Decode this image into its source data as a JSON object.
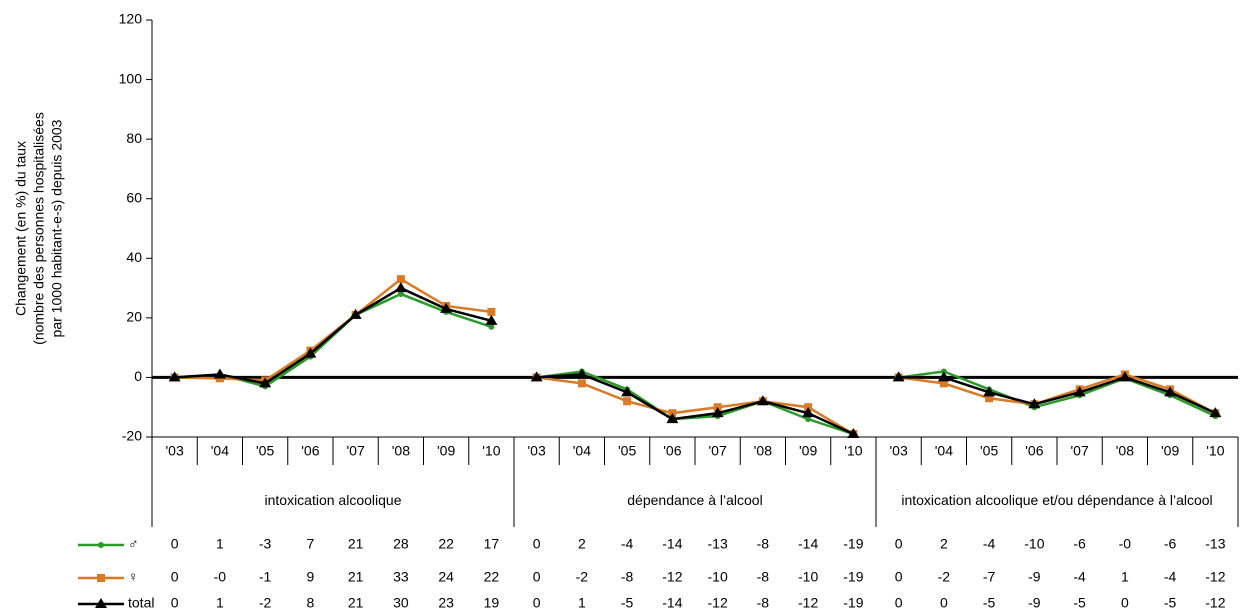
{
  "chart_data": {
    "type": "line",
    "ylabel": [
      "Changement (en %) du taux",
      "(nombre des personnes hospitalisées",
      "par 1000 habitant-e-s) depuis 2003"
    ],
    "groups": [
      {
        "label": "intoxication alcoolique",
        "categories": [
          "'03",
          "'04",
          "'05",
          "'06",
          "'07",
          "'08",
          "'09",
          "'10"
        ]
      },
      {
        "label": "dépendance à l’alcool",
        "categories": [
          "'03",
          "'04",
          "'05",
          "'06",
          "'07",
          "'08",
          "'09",
          "'10"
        ]
      },
      {
        "label": "intoxication alcoolique et/ou dépendance à l’alcool",
        "categories": [
          "'03",
          "'04",
          "'05",
          "'06",
          "'07",
          "'08",
          "'09",
          "'10"
        ]
      }
    ],
    "series": [
      {
        "name": "♂",
        "color": "#2a9a2a",
        "marker": "circle",
        "values": [
          0,
          1,
          -3,
          7,
          21,
          28,
          22,
          17,
          0,
          2,
          -4,
          -14,
          -13,
          -8,
          -14,
          -19,
          0,
          2,
          -4,
          -10,
          -6,
          -0.3,
          -6,
          -13
        ],
        "value_labels": [
          "0",
          "1",
          "-3",
          "7",
          "21",
          "28",
          "22",
          "17",
          "0",
          "2",
          "-4",
          "-14",
          "-13",
          "-8",
          "-14",
          "-19",
          "0",
          "2",
          "-4",
          "-10",
          "-6",
          "-0",
          "-6",
          "-13"
        ]
      },
      {
        "name": "♀",
        "color": "#d97a26",
        "marker": "square",
        "values": [
          0,
          -0.3,
          -1,
          9,
          21,
          33,
          24,
          22,
          0,
          -2,
          -8,
          -12,
          -10,
          -8,
          -10,
          -19,
          0,
          -2,
          -7,
          -9,
          -4,
          1,
          -4,
          -12
        ],
        "value_labels": [
          "0",
          "-0",
          "-1",
          "9",
          "21",
          "33",
          "24",
          "22",
          "0",
          "-2",
          "-8",
          "-12",
          "-10",
          "-8",
          "-10",
          "-19",
          "0",
          "-2",
          "-7",
          "-9",
          "-4",
          "1",
          "-4",
          "-12"
        ]
      },
      {
        "name": "total",
        "color": "#000000",
        "marker": "triangle",
        "values": [
          0,
          1,
          -2,
          8,
          21,
          30,
          23,
          19,
          0,
          1,
          -5,
          -14,
          -12,
          -8,
          -12,
          -19,
          0,
          0,
          -5,
          -9,
          -5,
          0,
          -5,
          -12
        ],
        "value_labels": [
          "0",
          "1",
          "-2",
          "8",
          "21",
          "30",
          "23",
          "19",
          "0",
          "1",
          "-5",
          "-14",
          "-12",
          "-8",
          "-12",
          "-19",
          "0",
          "0",
          "-5",
          "-9",
          "-5",
          "0",
          "-5",
          "-12"
        ]
      }
    ],
    "ylim": [
      -20,
      120
    ],
    "yticks": [
      -20,
      0,
      20,
      40,
      60,
      80,
      100,
      120
    ]
  }
}
